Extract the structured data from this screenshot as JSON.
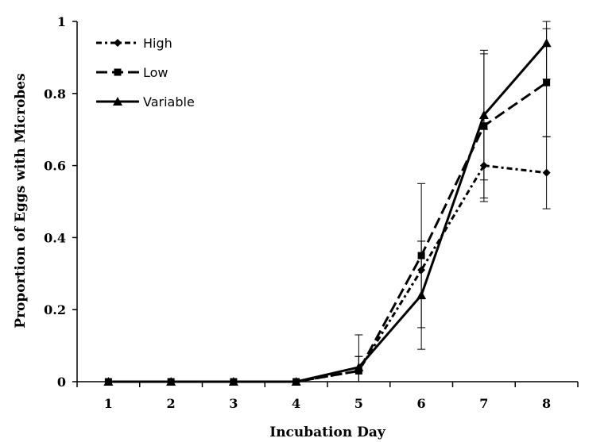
{
  "chart_data": {
    "type": "line",
    "title": "",
    "xlabel": "Incubation Day",
    "ylabel": "Proportion of Eggs with Microbes",
    "x": [
      1,
      2,
      3,
      4,
      5,
      6,
      7,
      8
    ],
    "x_tick_labels": [
      "1",
      "2",
      "3",
      "4",
      "5",
      "6",
      "7",
      "8"
    ],
    "ylim": [
      0,
      1
    ],
    "y_ticks": [
      0,
      0.2,
      0.4,
      0.6,
      0.8,
      1
    ],
    "y_tick_labels": [
      "0",
      "0.2",
      "0.4",
      "0.6",
      "0.8",
      "1"
    ],
    "grid": false,
    "legend_position": "top-left",
    "series": [
      {
        "name": "High",
        "marker": "diamond",
        "line_style": "dash-dot",
        "color": "#000000",
        "values": [
          0,
          0,
          0,
          0,
          0.03,
          0.31,
          0.6,
          0.58
        ],
        "error": [
          0,
          0,
          0,
          0,
          0.04,
          0.08,
          0.1,
          0.1
        ]
      },
      {
        "name": "Low",
        "marker": "square",
        "line_style": "dashed",
        "color": "#000000",
        "values": [
          0,
          0,
          0,
          0,
          0.03,
          0.35,
          0.71,
          0.83
        ],
        "error": [
          0,
          0,
          0,
          0,
          0.04,
          0.2,
          0.2,
          0.15
        ]
      },
      {
        "name": "Variable",
        "marker": "triangle",
        "line_style": "solid",
        "color": "#000000",
        "values": [
          0,
          0,
          0,
          0,
          0.04,
          0.24,
          0.74,
          0.94
        ],
        "error": [
          0,
          0,
          0,
          0,
          0.09,
          0.15,
          0.18,
          0.1
        ]
      }
    ]
  }
}
